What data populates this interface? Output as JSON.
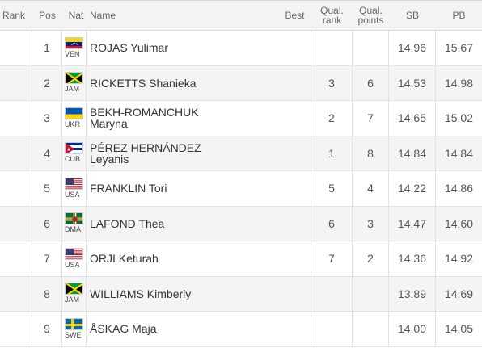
{
  "header": {
    "rank": "Rank",
    "pos": "Pos",
    "nat": "Nat",
    "name": "Name",
    "best": "Best",
    "qual_rank_1": "Qual.",
    "qual_rank_2": "rank",
    "qual_points_1": "Qual.",
    "qual_points_2": "points",
    "sb": "SB",
    "pb": "PB"
  },
  "rows": [
    {
      "pos": "1",
      "nat": "VEN",
      "name_1": "ROJAS Yulimar",
      "name_2": "",
      "qrank": "",
      "qpts": "",
      "sb": "14.96",
      "pb": "15.67",
      "flag": "ven-flag-icon"
    },
    {
      "pos": "2",
      "nat": "JAM",
      "name_1": "RICKETTS Shanieka",
      "name_2": "",
      "qrank": "3",
      "qpts": "6",
      "sb": "14.53",
      "pb": "14.98",
      "flag": "jam-flag-icon"
    },
    {
      "pos": "3",
      "nat": "UKR",
      "name_1": "BEKH-ROMANCHUK",
      "name_2": "Maryna",
      "qrank": "2",
      "qpts": "7",
      "sb": "14.65",
      "pb": "15.02",
      "flag": "ukr-flag-icon"
    },
    {
      "pos": "4",
      "nat": "CUB",
      "name_1": "PÉREZ HERNÁNDEZ",
      "name_2": "Leyanis",
      "qrank": "1",
      "qpts": "8",
      "sb": "14.84",
      "pb": "14.84",
      "flag": "cub-flag-icon"
    },
    {
      "pos": "5",
      "nat": "USA",
      "name_1": "FRANKLIN Tori",
      "name_2": "",
      "qrank": "5",
      "qpts": "4",
      "sb": "14.22",
      "pb": "14.86",
      "flag": "usa-flag-icon"
    },
    {
      "pos": "6",
      "nat": "DMA",
      "name_1": "LAFOND Thea",
      "name_2": "",
      "qrank": "6",
      "qpts": "3",
      "sb": "14.47",
      "pb": "14.60",
      "flag": "dma-flag-icon"
    },
    {
      "pos": "7",
      "nat": "USA",
      "name_1": "ORJI Keturah",
      "name_2": "",
      "qrank": "7",
      "qpts": "2",
      "sb": "14.36",
      "pb": "14.92",
      "flag": "usa-flag-icon"
    },
    {
      "pos": "8",
      "nat": "JAM",
      "name_1": "WILLIAMS Kimberly",
      "name_2": "",
      "qrank": "",
      "qpts": "",
      "sb": "13.89",
      "pb": "14.69",
      "flag": "jam-flag-icon"
    },
    {
      "pos": "9",
      "nat": "SWE",
      "name_1": "ÅSKAG Maja",
      "name_2": "",
      "qrank": "",
      "qpts": "",
      "sb": "14.00",
      "pb": "14.05",
      "flag": "swe-flag-icon"
    }
  ]
}
